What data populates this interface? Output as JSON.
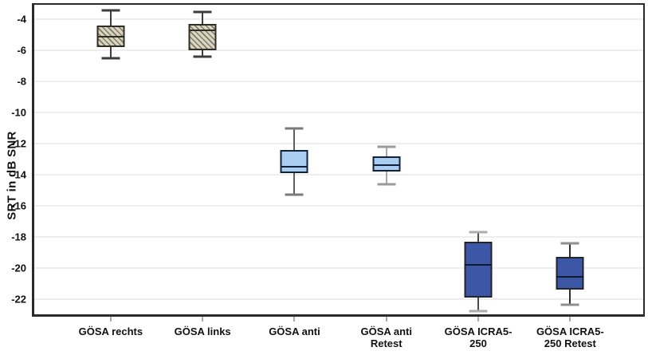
{
  "chart_data": {
    "type": "boxplot",
    "title": "",
    "xlabel": "",
    "ylabel": "SRT in dB SNR",
    "ylim": [
      -23.0,
      -3.05
    ],
    "yticks": [
      -4,
      -6,
      -8,
      -10,
      -12,
      -14,
      -16,
      -18,
      -20,
      -22
    ],
    "grid": true,
    "legend_position": "none",
    "categories": [
      "GÖSA rechts",
      "GÖSA links",
      "GÖSA anti",
      "GÖSA anti Retest",
      "GÖSA ICRA5-250",
      "GÖSA ICRA5-250 Retest"
    ],
    "series": [
      {
        "name": "GÖSA rechts",
        "label_lines": [
          "GÖSA rechts"
        ],
        "box_style": "hatched-tan",
        "fill": "#d9d5c1",
        "hatch": "#7e7a66",
        "border": "#2f2e26",
        "median_color": "#2f2e26",
        "whisker_color": "#3d3d3d",
        "cap_color": "#3d3d3d",
        "whisker_low": -6.5,
        "q1": -5.8,
        "median": -5.1,
        "q3": -4.4,
        "whisker_high": -3.4
      },
      {
        "name": "GÖSA links",
        "label_lines": [
          "GÖSA links"
        ],
        "box_style": "hatched-tan",
        "fill": "#d9d5c1",
        "hatch": "#7e7a66",
        "border": "#2f2e26",
        "median_color": "#2f2e26",
        "whisker_color": "#3d3d3d",
        "cap_color": "#3d3d3d",
        "whisker_low": -6.4,
        "q1": -6.0,
        "median": -4.7,
        "q3": -4.3,
        "whisker_high": -3.5
      },
      {
        "name": "GÖSA anti",
        "label_lines": [
          "GÖSA anti"
        ],
        "box_style": "light-blue",
        "fill": "#a9cef2",
        "hatch": null,
        "border": "#13203a",
        "median_color": "#13203a",
        "whisker_color": "#5f5f5f",
        "cap_color": "#7a7a7a",
        "whisker_low": -15.3,
        "q1": -13.9,
        "median": -13.5,
        "q3": -12.4,
        "whisker_high": -11.0
      },
      {
        "name": "GÖSA anti Retest",
        "label_lines": [
          "GÖSA anti",
          "Retest"
        ],
        "box_style": "light-blue",
        "fill": "#a9cef2",
        "hatch": null,
        "border": "#13203a",
        "median_color": "#13203a",
        "whisker_color": "#a8a8a8",
        "cap_color": "#9a9a9a",
        "whisker_low": -14.6,
        "q1": -13.8,
        "median": -13.4,
        "q3": -12.8,
        "whisker_high": -12.2
      },
      {
        "name": "GÖSA ICRA5-250",
        "label_lines": [
          "GÖSA ICRA5-",
          "250"
        ],
        "box_style": "dark-blue",
        "fill": "#3c57a5",
        "hatch": null,
        "border": "#23232b",
        "median_color": "#101a30",
        "whisker_color": "#4a4a4a",
        "cap_color": "#aeaeae",
        "whisker_low": -22.8,
        "q1": -21.9,
        "median": -19.8,
        "q3": -18.3,
        "whisker_high": -17.7
      },
      {
        "name": "GÖSA ICRA5-250 Retest",
        "label_lines": [
          "GÖSA ICRA5-",
          "250 Retest"
        ],
        "box_style": "dark-blue",
        "fill": "#3c57a5",
        "hatch": null,
        "border": "#23232b",
        "median_color": "#101a30",
        "whisker_color": "#2e2e2e",
        "cap_color": "#8f8f8f",
        "whisker_low": -22.4,
        "q1": -21.4,
        "median": -20.6,
        "q3": -19.3,
        "whisker_high": -18.4
      }
    ]
  },
  "colors": {
    "plot_border": "#2a2a2a",
    "gridline": "#dcdcdc",
    "background": "#ffffff",
    "text": "#111111",
    "tan_fill": "#d9d5c1",
    "light_blue_fill": "#a9cef2",
    "dark_blue_fill": "#3c57a5"
  }
}
